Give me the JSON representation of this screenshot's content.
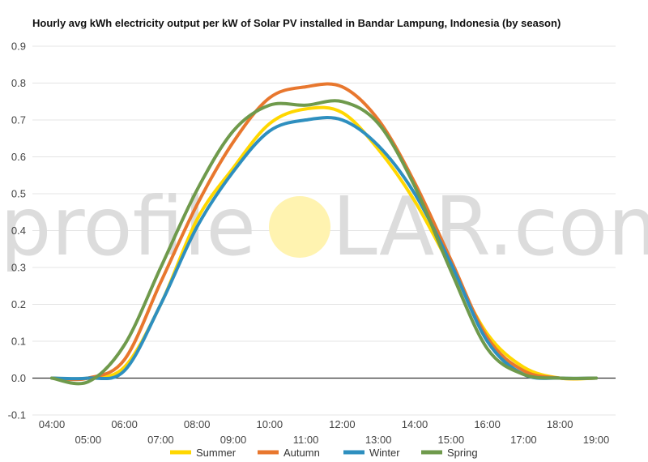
{
  "chart_data": {
    "type": "line",
    "title": "Hourly avg kWh electricity output per kW of Solar PV installed in Bandar Lampung, Indonesia (by season)",
    "xlabel": "",
    "ylabel": "",
    "xlim": [
      4,
      19
    ],
    "ylim": [
      -0.1,
      0.9
    ],
    "yticks": [
      -0.1,
      0.0,
      0.1,
      0.2,
      0.3,
      0.4,
      0.5,
      0.6,
      0.7,
      0.8,
      0.9
    ],
    "ytick_labels": [
      "-0.1",
      "0.0",
      "0.1",
      "0.2",
      "0.3",
      "0.4",
      "0.5",
      "0.6",
      "0.7",
      "0.8",
      "0.9"
    ],
    "xtick_labels": [
      "04:00",
      "05:00",
      "06:00",
      "07:00",
      "08:00",
      "09:00",
      "10:00",
      "11:00",
      "12:00",
      "13:00",
      "14:00",
      "15:00",
      "16:00",
      "17:00",
      "18:00",
      "19:00"
    ],
    "grid": true,
    "legend_position": "bottom",
    "x": [
      4,
      5,
      6,
      7,
      8,
      9,
      10,
      11,
      12,
      13,
      14,
      15,
      16,
      17,
      18,
      19
    ],
    "series": [
      {
        "name": "Summer",
        "color": "#FFD700",
        "values": [
          0.0,
          0.0,
          0.03,
          0.2,
          0.43,
          0.57,
          0.69,
          0.73,
          0.72,
          0.62,
          0.48,
          0.3,
          0.12,
          0.03,
          0.0,
          0.0
        ]
      },
      {
        "name": "Autumn",
        "color": "#E8772E",
        "values": [
          0.0,
          0.0,
          0.05,
          0.26,
          0.47,
          0.64,
          0.76,
          0.79,
          0.79,
          0.7,
          0.53,
          0.32,
          0.11,
          0.02,
          0.0,
          0.0
        ]
      },
      {
        "name": "Winter",
        "color": "#2E8FBF",
        "values": [
          0.0,
          0.0,
          0.02,
          0.2,
          0.41,
          0.56,
          0.67,
          0.7,
          0.7,
          0.63,
          0.5,
          0.31,
          0.1,
          0.01,
          0.0,
          0.0
        ]
      },
      {
        "name": "Spring",
        "color": "#6F9A4C",
        "values": [
          0.0,
          -0.01,
          0.09,
          0.3,
          0.51,
          0.67,
          0.74,
          0.74,
          0.75,
          0.69,
          0.52,
          0.29,
          0.08,
          0.01,
          0.0,
          0.0
        ]
      }
    ]
  },
  "watermark": {
    "left_text": "profile",
    "right_text": "LAR.com",
    "sun_color": "#FFF3B0"
  }
}
